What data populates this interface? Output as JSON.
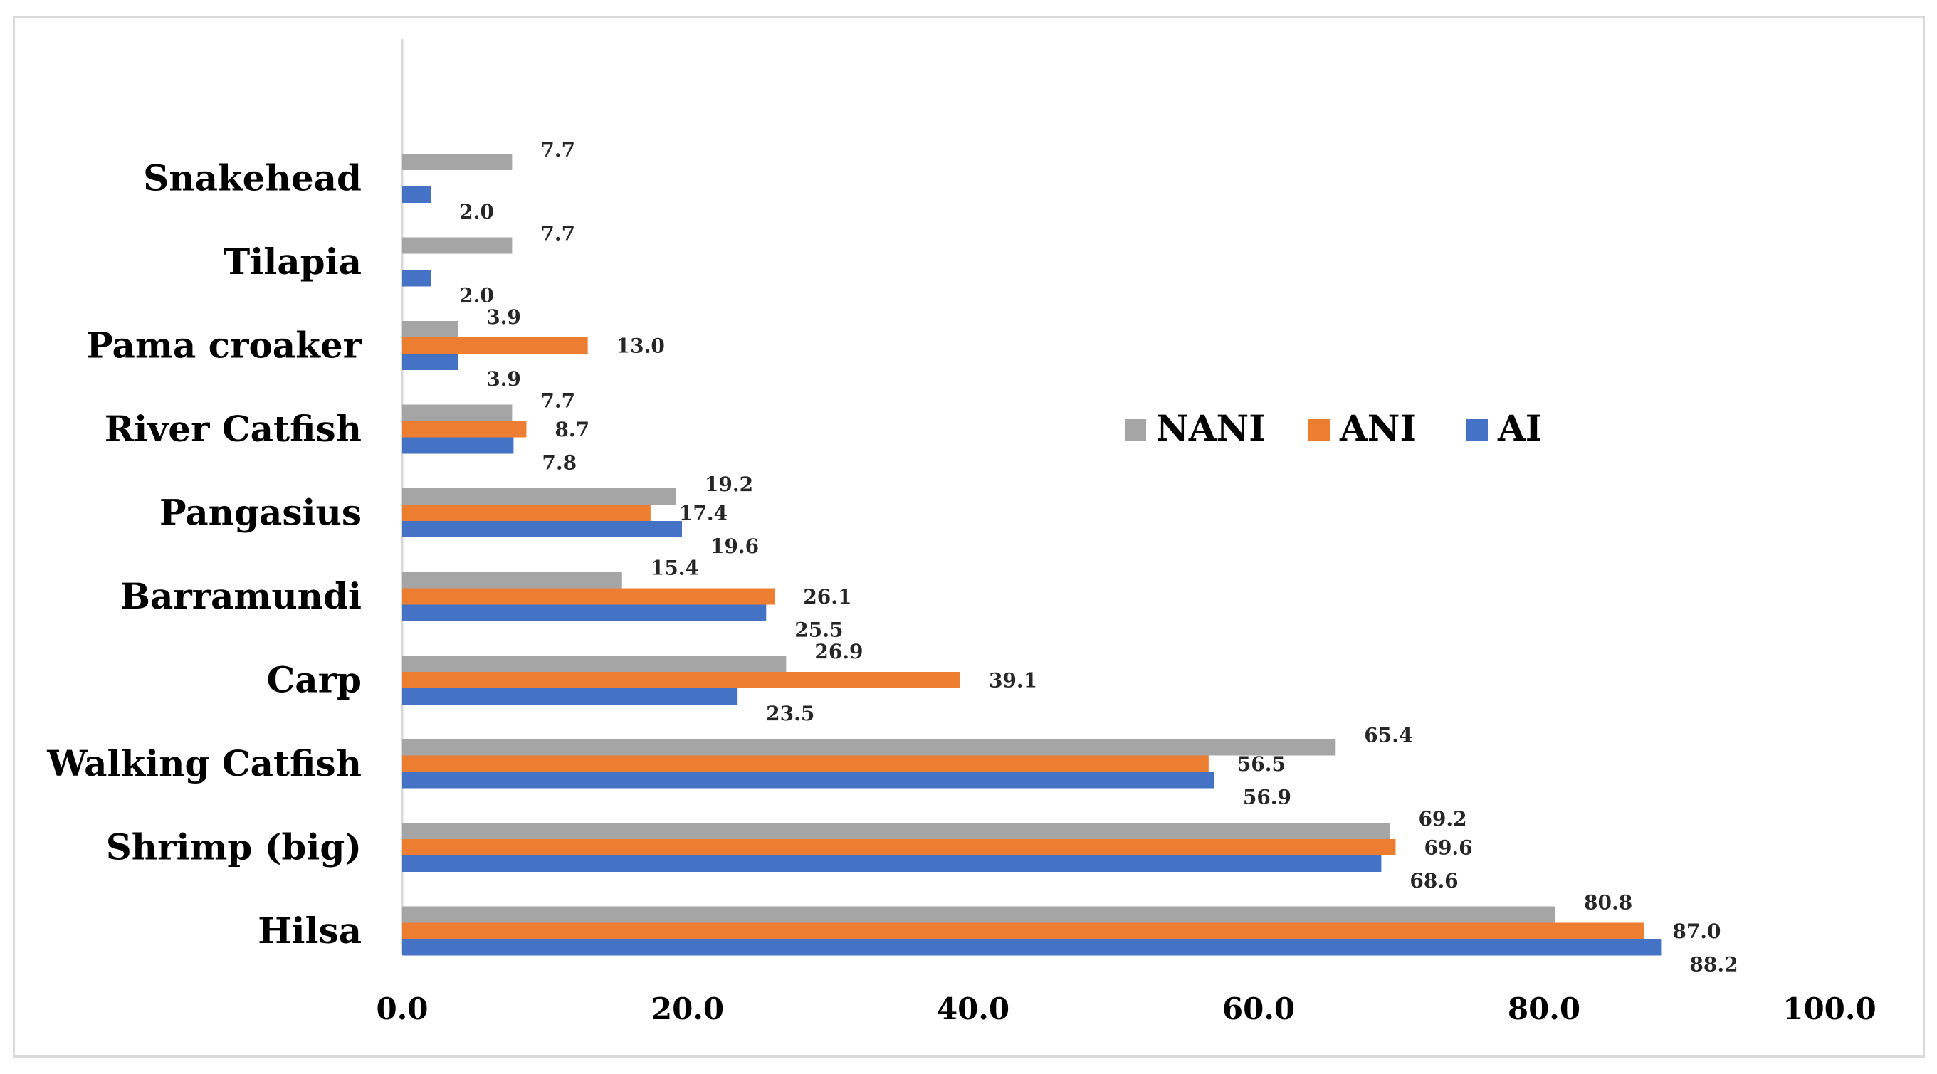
{
  "chart_data": {
    "type": "bar",
    "orientation": "horizontal",
    "title": "",
    "xlabel": "",
    "ylabel": "",
    "xlim": [
      0,
      100
    ],
    "x_ticks": [
      "0.0",
      "20.0",
      "40.0",
      "60.0",
      "80.0",
      "100.0"
    ],
    "grid": false,
    "legend_position": "center-right",
    "categories": [
      "Hilsa",
      "Shrimp (big)",
      "Walking Catfish",
      "Carp",
      "Barramundi",
      "Pangasius",
      "River Catfish",
      "Pama croaker",
      "Tilapia",
      "Snakehead"
    ],
    "series": [
      {
        "name": "NANI",
        "color": "#a5a5a5",
        "values": [
          80.8,
          69.2,
          65.4,
          26.9,
          15.4,
          19.2,
          7.7,
          3.9,
          7.7,
          7.7
        ],
        "labels": [
          "80.8",
          "69.2",
          "65.4",
          "26.9",
          "15.4",
          "19.2",
          "7.7",
          "3.9",
          "7.7",
          "7.7"
        ]
      },
      {
        "name": "ANI",
        "color": "#ed7d31",
        "values": [
          87.0,
          69.6,
          56.5,
          39.1,
          26.1,
          17.4,
          8.7,
          13.0,
          null,
          null
        ],
        "labels": [
          "87.0",
          "69.6",
          "56.5",
          "39.1",
          "26.1",
          "17.4",
          "8.7",
          "13.0",
          null,
          null
        ]
      },
      {
        "name": "AI",
        "color": "#4472c4",
        "values": [
          88.2,
          68.6,
          56.9,
          23.5,
          25.5,
          19.6,
          7.8,
          3.9,
          2.0,
          2.0
        ],
        "labels": [
          "88.2",
          "68.6",
          "56.9",
          "23.5",
          "25.5",
          "19.6",
          "7.8",
          "3.9",
          "2.0",
          "2.0"
        ]
      }
    ],
    "legend_order": [
      "NANI",
      "ANI",
      "AI"
    ]
  }
}
